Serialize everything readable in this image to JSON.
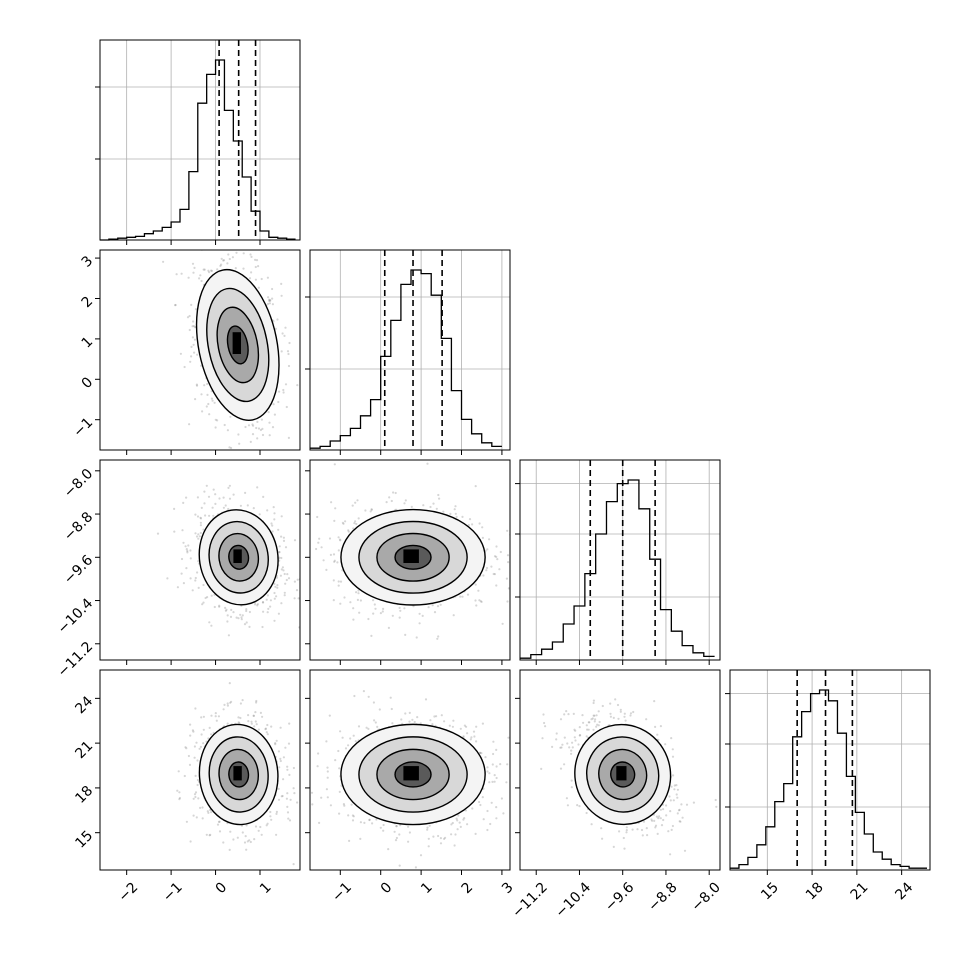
{
  "chart_data": {
    "type": "corner",
    "dims": 4,
    "variables": [
      {
        "range": [
          -2.6,
          1.9
        ],
        "ticks": [
          -2,
          -1,
          0,
          1
        ],
        "tick_labels": [
          "−2",
          "−1",
          "0",
          "1"
        ],
        "hist": {
          "bins": [
            -2.6,
            -2.4,
            -2.2,
            -2.0,
            -1.8,
            -1.6,
            -1.4,
            -1.2,
            -1.0,
            -0.8,
            -0.6,
            -0.4,
            -0.2,
            0.0,
            0.2,
            0.4,
            0.6,
            0.8,
            1.0,
            1.2,
            1.4,
            1.6,
            1.8
          ],
          "counts": [
            0.0,
            0.005,
            0.01,
            0.015,
            0.02,
            0.035,
            0.05,
            0.07,
            0.1,
            0.17,
            0.38,
            0.76,
            0.92,
            1.0,
            0.72,
            0.55,
            0.35,
            0.16,
            0.05,
            0.015,
            0.01,
            0.005
          ]
        },
        "quantiles": [
          0.08,
          0.52,
          0.9
        ],
        "hist_grid": [
          0.45,
          0.85
        ]
      },
      {
        "range": [
          -1.75,
          3.2
        ],
        "ticks": [
          -1,
          0,
          1,
          2,
          3
        ],
        "tick_labels": [
          "−1",
          "0",
          "1",
          "2",
          "3"
        ],
        "hist": {
          "bins": [
            -1.75,
            -1.5,
            -1.25,
            -1.0,
            -0.75,
            -0.5,
            -0.25,
            0.0,
            0.25,
            0.5,
            0.75,
            1.0,
            1.25,
            1.5,
            1.75,
            2.0,
            2.25,
            2.5,
            2.75,
            3.0
          ],
          "counts": [
            0.01,
            0.02,
            0.05,
            0.08,
            0.12,
            0.19,
            0.28,
            0.52,
            0.72,
            0.92,
            1.0,
            0.98,
            0.86,
            0.62,
            0.33,
            0.17,
            0.09,
            0.04,
            0.02
          ]
        },
        "quantiles": [
          0.1,
          0.8,
          1.52
        ],
        "hist_grid": [
          0.45,
          0.85
        ]
      },
      {
        "range": [
          -11.5,
          -7.8
        ],
        "ticks": [
          -11.2,
          -10.4,
          -9.6,
          -8.8,
          -8.0
        ],
        "tick_labels": [
          "−11.2",
          "−10.4",
          "−9.6",
          "−8.8",
          "−8.0"
        ],
        "hist": {
          "bins": [
            -11.5,
            -11.3,
            -11.1,
            -10.9,
            -10.7,
            -10.5,
            -10.3,
            -10.1,
            -9.9,
            -9.7,
            -9.5,
            -9.3,
            -9.1,
            -8.9,
            -8.7,
            -8.5,
            -8.3,
            -8.1,
            -7.9
          ],
          "counts": [
            0.01,
            0.03,
            0.06,
            0.1,
            0.2,
            0.3,
            0.48,
            0.7,
            0.88,
            0.98,
            1.0,
            0.84,
            0.56,
            0.28,
            0.16,
            0.08,
            0.04,
            0.02
          ]
        },
        "quantiles": [
          -10.2,
          -9.6,
          -9.0
        ],
        "hist_grid": [
          0.35,
          0.7,
          0.98
        ]
      },
      {
        "range": [
          12.5,
          25.9
        ],
        "ticks": [
          15,
          18,
          21,
          24
        ],
        "tick_labels": [
          "15",
          "18",
          "21",
          "24"
        ],
        "hist": {
          "bins": [
            12.5,
            13.1,
            13.7,
            14.3,
            14.9,
            15.5,
            16.1,
            16.7,
            17.3,
            17.9,
            18.5,
            19.1,
            19.7,
            20.3,
            20.9,
            21.5,
            22.1,
            22.7,
            23.3,
            23.9,
            24.5,
            25.1,
            25.7
          ],
          "counts": [
            0.01,
            0.03,
            0.07,
            0.14,
            0.24,
            0.38,
            0.48,
            0.74,
            0.88,
            0.98,
            1.0,
            0.94,
            0.76,
            0.52,
            0.32,
            0.2,
            0.1,
            0.06,
            0.03,
            0.02,
            0.01,
            0.01
          ]
        },
        "quantiles": [
          17.0,
          18.9,
          20.7
        ],
        "hist_grid": [
          0.35,
          0.7,
          0.98
        ]
      }
    ],
    "pairs": [
      {
        "row": 1,
        "col": 0,
        "mean": [
          0.5,
          0.85
        ],
        "sd": [
          0.42,
          0.9
        ],
        "rho": -0.25
      },
      {
        "row": 2,
        "col": 0,
        "mean": [
          0.52,
          -9.6
        ],
        "sd": [
          0.42,
          0.42
        ],
        "rho": -0.2
      },
      {
        "row": 2,
        "col": 1,
        "mean": [
          0.8,
          -9.6
        ],
        "sd": [
          0.85,
          0.42
        ],
        "rho": 0.0
      },
      {
        "row": 3,
        "col": 0,
        "mean": [
          0.52,
          18.9
        ],
        "sd": [
          0.42,
          1.6
        ],
        "rho": -0.1
      },
      {
        "row": 3,
        "col": 1,
        "mean": [
          0.8,
          18.9
        ],
        "sd": [
          0.85,
          1.6
        ],
        "rho": 0.0
      },
      {
        "row": 3,
        "col": 2,
        "mean": [
          -9.6,
          18.9
        ],
        "sd": [
          0.42,
          1.6
        ],
        "rho": -0.35
      }
    ],
    "contour_levels_sigma": [
      0.5,
      1.0,
      1.5,
      2.0
    ],
    "grid": true,
    "title": "",
    "axis_labels": [
      "",
      "",
      "",
      ""
    ]
  }
}
